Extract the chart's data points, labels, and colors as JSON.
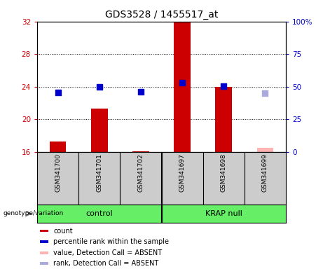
{
  "title": "GDS3528 / 1455517_at",
  "samples": [
    "GSM341700",
    "GSM341701",
    "GSM341702",
    "GSM341697",
    "GSM341698",
    "GSM341699"
  ],
  "bar_values": [
    17.3,
    21.3,
    16.1,
    32.0,
    24.0,
    16.5
  ],
  "bar_colors": [
    "#cc0000",
    "#cc0000",
    "#cc0000",
    "#cc0000",
    "#cc0000",
    "#ffb3b3"
  ],
  "dot_values": [
    23.3,
    24.0,
    23.4,
    24.5,
    24.1,
    23.2
  ],
  "dot_colors": [
    "#0000cc",
    "#0000cc",
    "#0000cc",
    "#0000cc",
    "#0000cc",
    "#aaaadd"
  ],
  "dot_sizes": [
    30,
    30,
    30,
    30,
    30,
    30
  ],
  "ylim_left": [
    16,
    32
  ],
  "ylim_right": [
    0,
    100
  ],
  "yticks_left": [
    16,
    20,
    24,
    28,
    32
  ],
  "yticks_right": [
    0,
    25,
    50,
    75,
    100
  ],
  "ytick_labels_left": [
    "16",
    "20",
    "24",
    "28",
    "32"
  ],
  "ytick_labels_right": [
    "0",
    "25",
    "50",
    "75",
    "100%"
  ],
  "group_bg_color": "#66ee66",
  "sample_bg_color": "#cccccc",
  "plot_bg_color": "#ffffff",
  "title_fontsize": 10,
  "tick_fontsize": 7.5,
  "legend_items": [
    {
      "label": "count",
      "color": "#cc0000"
    },
    {
      "label": "percentile rank within the sample",
      "color": "#0000cc"
    },
    {
      "label": "value, Detection Call = ABSENT",
      "color": "#ffb3b3"
    },
    {
      "label": "rank, Detection Call = ABSENT",
      "color": "#aaaadd"
    }
  ]
}
